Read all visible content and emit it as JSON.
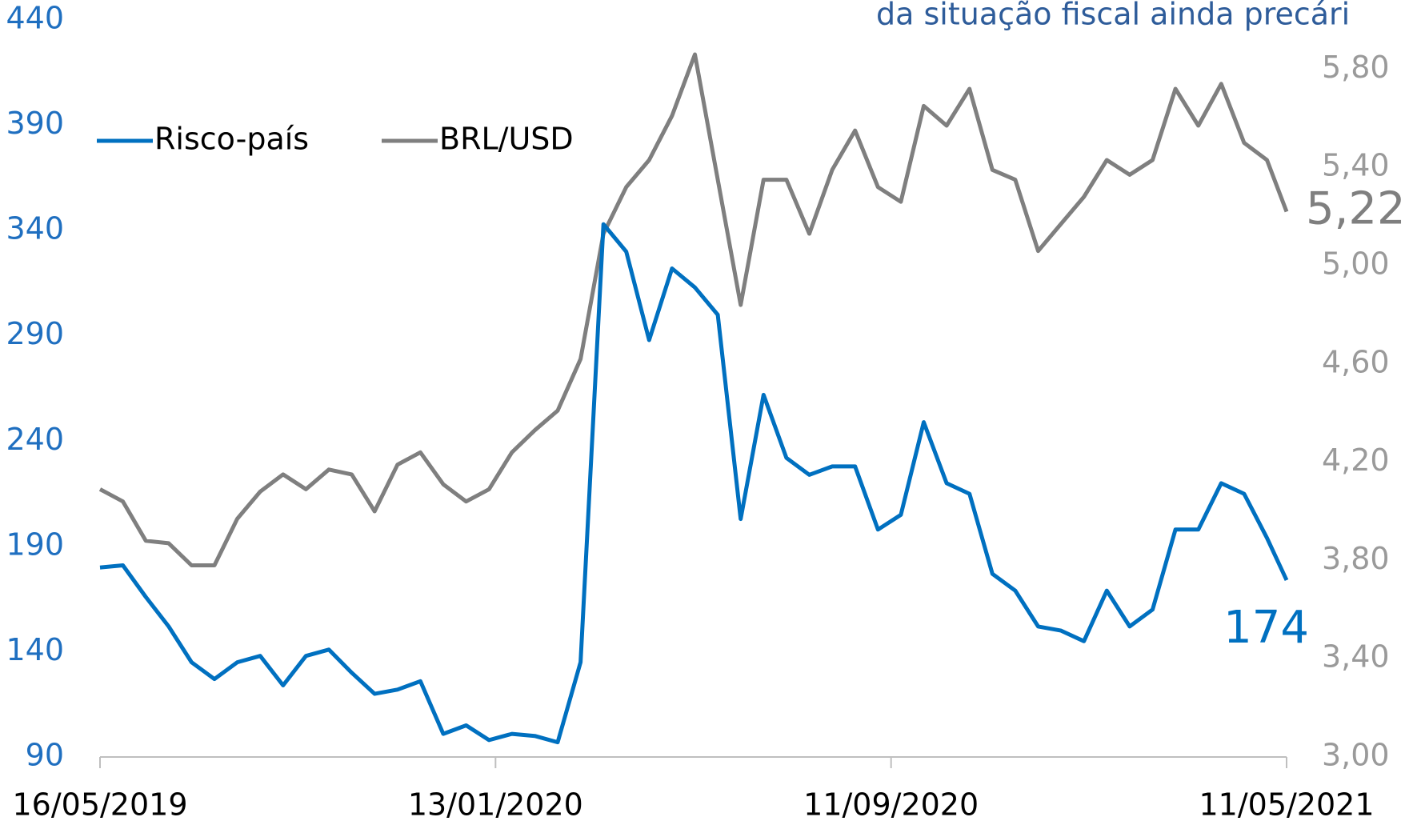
{
  "chart_data": {
    "type": "line",
    "title": "da situação fiscal ainda precári",
    "x": [
      "16/05/2019",
      "30/05/2019",
      "13/06/2019",
      "27/06/2019",
      "11/07/2019",
      "25/07/2019",
      "08/08/2019",
      "22/08/2019",
      "05/09/2019",
      "19/09/2019",
      "03/10/2019",
      "17/10/2019",
      "31/10/2019",
      "14/11/2019",
      "28/11/2019",
      "12/12/2019",
      "26/12/2019",
      "09/01/2020",
      "23/01/2020",
      "06/02/2020",
      "20/02/2020",
      "05/03/2020",
      "19/03/2020",
      "02/04/2020",
      "16/04/2020",
      "30/04/2020",
      "14/05/2020",
      "28/05/2020",
      "11/06/2020",
      "25/06/2020",
      "09/07/2020",
      "23/07/2020",
      "06/08/2020",
      "20/08/2020",
      "03/09/2020",
      "17/09/2020",
      "01/10/2020",
      "15/10/2020",
      "29/10/2020",
      "12/11/2020",
      "26/11/2020",
      "10/12/2020",
      "24/12/2020",
      "07/01/2021",
      "21/01/2021",
      "04/02/2021",
      "18/02/2021",
      "04/03/2021",
      "18/03/2021",
      "01/04/2021",
      "15/04/2021",
      "29/04/2021",
      "11/05/2021"
    ],
    "series": [
      {
        "name": "Risco-país",
        "color": "#0070c0",
        "axis": "y",
        "values": [
          180,
          181,
          166,
          152,
          135,
          127,
          135,
          138,
          124,
          138,
          141,
          130,
          120,
          122,
          126,
          101,
          105,
          98,
          101,
          100,
          97,
          135,
          343,
          330,
          288,
          322,
          313,
          300,
          203,
          262,
          232,
          224,
          228,
          228,
          198,
          205,
          249,
          220,
          215,
          177,
          169,
          152,
          150,
          145,
          169,
          152,
          160,
          198,
          198,
          220,
          215,
          194,
          174
        ],
        "value_labels": [
          null,
          null,
          null,
          null,
          null,
          null,
          null,
          null,
          null,
          null,
          null,
          null,
          null,
          null,
          null,
          null,
          null,
          null,
          null,
          null,
          null,
          null,
          null,
          null,
          null,
          null,
          null,
          null,
          null,
          null,
          null,
          null,
          null,
          null,
          null,
          null,
          null,
          null,
          null,
          null,
          null,
          null,
          null,
          null,
          null,
          null,
          null,
          null,
          null,
          null,
          null,
          null,
          "174"
        ]
      },
      {
        "name": "BRL/USD",
        "color": "#7f7f7f",
        "axis": "y2",
        "values": [
          4.09,
          4.04,
          3.88,
          3.87,
          3.78,
          3.78,
          3.97,
          4.08,
          4.15,
          4.09,
          4.17,
          4.15,
          4.0,
          4.19,
          4.24,
          4.11,
          4.04,
          4.09,
          4.24,
          4.33,
          4.41,
          4.62,
          5.13,
          5.32,
          5.43,
          5.61,
          5.86,
          5.35,
          4.84,
          5.35,
          5.35,
          5.13,
          5.39,
          5.55,
          5.32,
          5.26,
          5.65,
          5.57,
          5.72,
          5.39,
          5.35,
          5.06,
          5.17,
          5.28,
          5.43,
          5.37,
          5.43,
          5.72,
          5.57,
          5.74,
          5.5,
          5.43,
          5.22
        ],
        "value_labels": [
          null,
          null,
          null,
          null,
          null,
          null,
          null,
          null,
          null,
          null,
          null,
          null,
          null,
          null,
          null,
          null,
          null,
          null,
          null,
          null,
          null,
          null,
          null,
          null,
          null,
          null,
          null,
          null,
          null,
          null,
          null,
          null,
          null,
          null,
          null,
          null,
          null,
          null,
          null,
          null,
          null,
          null,
          null,
          null,
          null,
          null,
          null,
          null,
          null,
          null,
          null,
          null,
          "5,22"
        ]
      }
    ],
    "xticks": [
      "16/05/2019",
      "13/01/2020",
      "11/09/2020",
      "11/05/2021"
    ],
    "ylim": [
      90,
      440
    ],
    "yticks": [
      90,
      140,
      190,
      240,
      290,
      340,
      390,
      440
    ],
    "y2lim": [
      3,
      6
    ],
    "y2ticks": [
      {
        "value": 3,
        "label": "3,00"
      },
      {
        "value": 3.4,
        "label": "3,40"
      },
      {
        "value": 3.8,
        "label": "3,80"
      },
      {
        "value": 4.2,
        "label": "4,20"
      },
      {
        "value": 4.6,
        "label": "4,60"
      },
      {
        "value": 5,
        "label": "5,00"
      },
      {
        "value": 5.4,
        "label": "5,40"
      },
      {
        "value": 5.8,
        "label": "5,80"
      }
    ],
    "legend": "upper-left",
    "grid": false
  }
}
